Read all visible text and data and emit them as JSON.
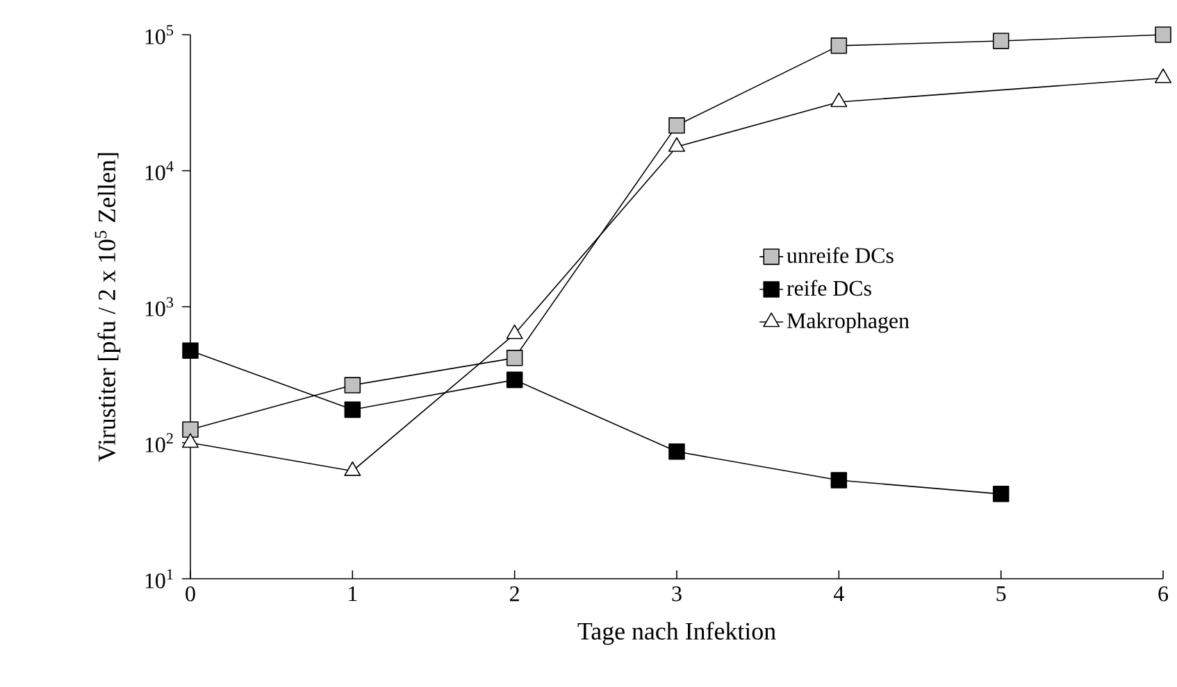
{
  "chart_data": {
    "type": "line",
    "xlabel": "Tage nach Infektion",
    "ylabel": "Virustiter [pfu / 2 x 10$^{5}$ Zellen]",
    "xlim": [
      0,
      6
    ],
    "xticks": [
      0,
      1,
      2,
      3,
      4,
      5,
      6
    ],
    "ylim": [
      10,
      100000
    ],
    "yticks": [
      {
        "value": 10,
        "label": "10$^{1}$"
      },
      {
        "value": 100,
        "label": "10$^{2}$"
      },
      {
        "value": 1000,
        "label": "10$^{3}$"
      },
      {
        "value": 10000,
        "label": "10$^{4}$"
      },
      {
        "value": 100000,
        "label": "10$^{5}$"
      }
    ],
    "log": "y",
    "legend": "right",
    "line_style": "solid",
    "series": [
      {
        "name": "unreife DCs",
        "color": "#c0c0c0",
        "marker": "square",
        "x": [
          0,
          1,
          2,
          3,
          4,
          5,
          6
        ],
        "values": [
          125,
          265,
          420,
          21500,
          83000,
          90000,
          100000
        ]
      },
      {
        "name": "reife DCs",
        "color": "#000000",
        "marker": "square",
        "x": [
          0,
          1,
          2,
          3,
          4,
          5
        ],
        "values": [
          475,
          175,
          290,
          86,
          53,
          42
        ]
      },
      {
        "name": "Makrophagen",
        "color": "#ffffff",
        "marker": "triangle",
        "x": [
          0,
          1,
          2,
          3,
          4,
          6
        ],
        "values": [
          100,
          62,
          630,
          15000,
          32000,
          48000
        ]
      }
    ]
  }
}
